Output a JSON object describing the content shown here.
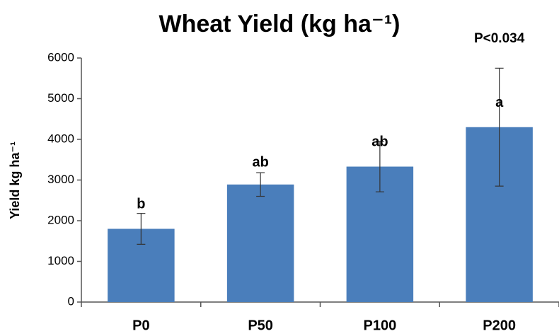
{
  "chart_data": {
    "type": "bar",
    "title": "Wheat Yield (kg ha⁻¹)",
    "ylabel": "Yield kg ha⁻¹",
    "categories": [
      "P0",
      "P50",
      "P100",
      "P200"
    ],
    "values": [
      1800,
      2890,
      3330,
      4300
    ],
    "errors": [
      380,
      290,
      620,
      1450
    ],
    "letters": [
      "b",
      "ab",
      "ab",
      "a"
    ],
    "annotation": "P<0.034",
    "color": "#4a7ebb",
    "ylim": [
      0,
      6000
    ],
    "yticks": [
      0,
      1000,
      2000,
      3000,
      4000,
      5000,
      6000
    ],
    "grid": false
  }
}
